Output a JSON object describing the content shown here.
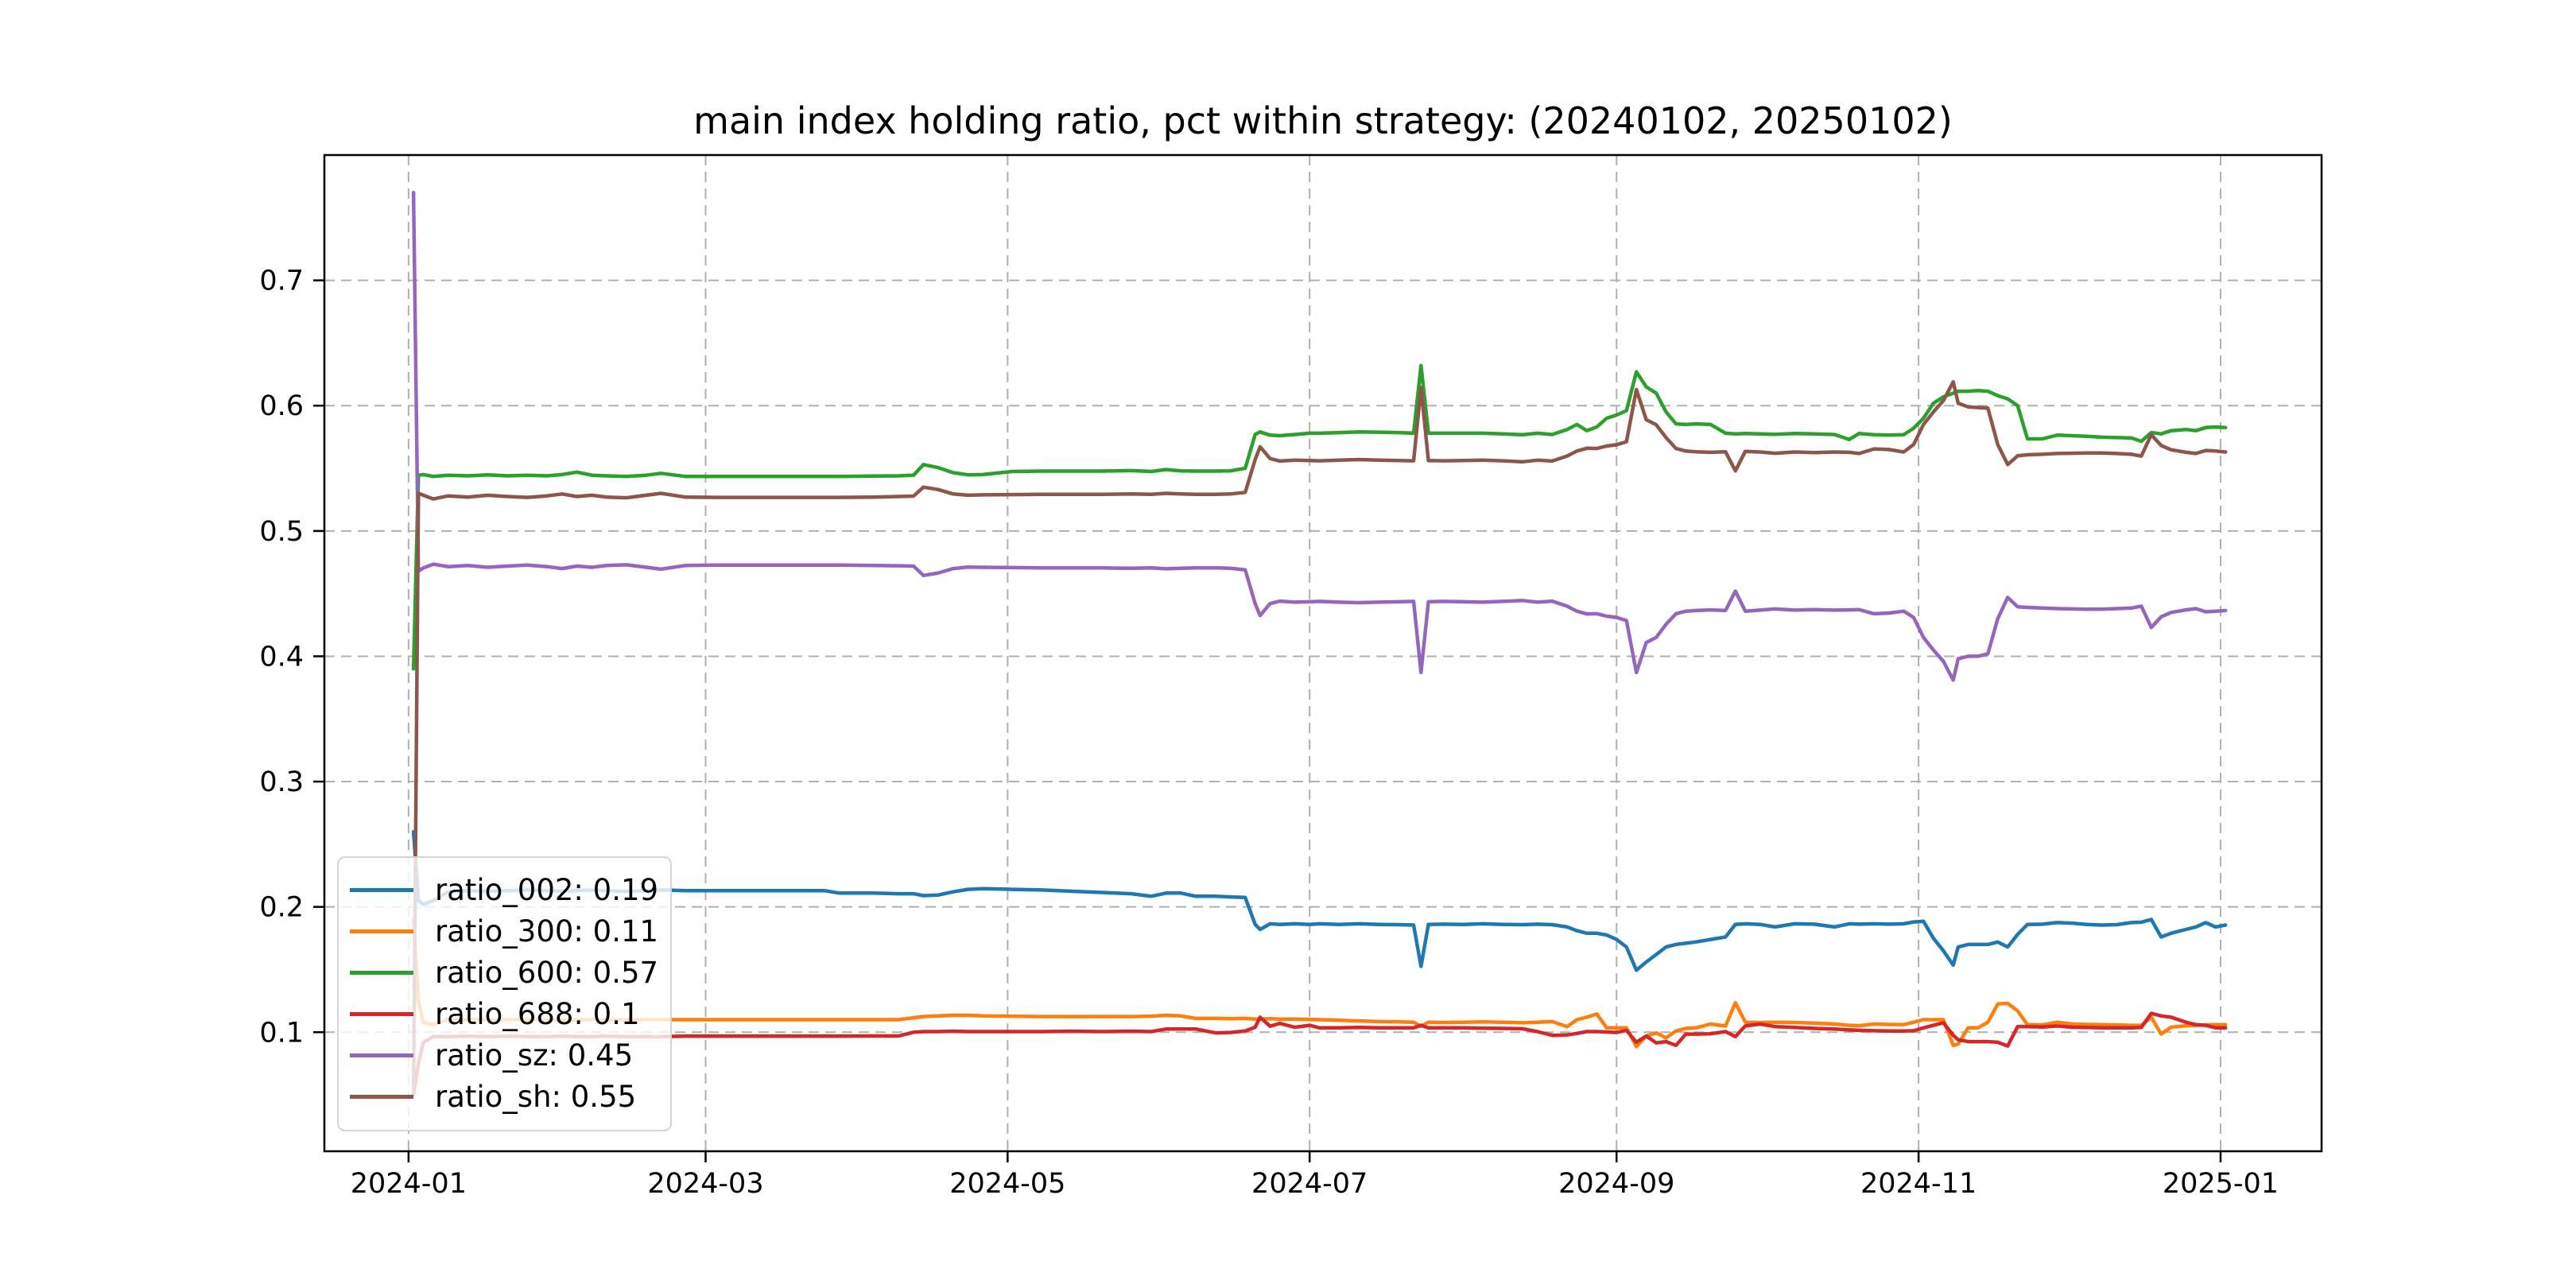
{
  "figure_title": "main index holding ratio, pct within strategy: (20240102, 20250102)",
  "chart_data": {
    "type": "line",
    "title": "main index holding ratio, pct within strategy: (20240102, 20250102)",
    "xlabel": "",
    "ylabel": "",
    "grid": true,
    "grid_style": "dashed",
    "legend_position": "lower left",
    "x_unit": "days since 2024-01-01",
    "xlim_days": [
      -17,
      386.4
    ],
    "ylim": [
      0.005,
      0.8
    ],
    "x_ticks": [
      {
        "day": 0,
        "label": "2024-01"
      },
      {
        "day": 60,
        "label": "2024-03"
      },
      {
        "day": 121,
        "label": "2024-05"
      },
      {
        "day": 182,
        "label": "2024-07"
      },
      {
        "day": 244,
        "label": "2024-09"
      },
      {
        "day": 305,
        "label": "2024-11"
      },
      {
        "day": 366,
        "label": "2025-01"
      }
    ],
    "y_ticks": [
      {
        "value": 0.1,
        "label": "0.1"
      },
      {
        "value": 0.2,
        "label": "0.2"
      },
      {
        "value": 0.3,
        "label": "0.3"
      },
      {
        "value": 0.4,
        "label": "0.4"
      },
      {
        "value": 0.5,
        "label": "0.5"
      },
      {
        "value": 0.6,
        "label": "0.6"
      },
      {
        "value": 0.7,
        "label": "0.7"
      }
    ],
    "days": [
      1,
      2,
      3,
      5,
      8,
      12,
      16,
      20,
      24,
      28,
      31,
      34,
      37,
      40,
      44,
      48,
      51,
      56,
      63,
      70,
      77,
      84,
      87,
      94,
      99,
      102,
      104,
      107,
      110,
      113,
      116,
      122,
      128,
      134,
      140,
      146,
      150,
      153,
      156,
      159,
      163,
      166,
      169,
      171,
      172,
      174,
      176,
      179,
      182,
      184,
      188,
      192,
      196,
      200,
      203,
      204.5,
      206,
      209,
      213,
      217,
      221,
      225,
      228,
      231,
      234,
      236,
      238,
      240,
      242,
      244,
      246,
      248,
      250,
      252,
      254,
      256,
      258,
      260,
      263,
      266,
      268,
      270,
      273,
      276,
      280,
      284,
      288,
      291,
      293,
      296,
      299,
      302,
      304,
      306,
      308,
      310,
      312,
      313,
      315,
      317,
      319,
      321,
      323,
      325,
      327,
      330,
      333,
      336,
      339,
      342,
      345,
      348,
      350,
      352,
      354,
      356,
      359,
      361,
      363,
      365,
      367
    ],
    "series": [
      {
        "name": "ratio_002",
        "legend_label": "ratio_002: 0.19",
        "color": "#1f77b4",
        "values": [
          0.26,
          0.205,
          0.202,
          0.205,
          0.212,
          0.213,
          0.2125,
          0.213,
          0.2135,
          0.213,
          0.2125,
          0.213,
          0.2135,
          0.213,
          0.2125,
          0.213,
          0.2135,
          0.213,
          0.213,
          0.213,
          0.213,
          0.213,
          0.211,
          0.211,
          0.2105,
          0.2105,
          0.209,
          0.2095,
          0.212,
          0.214,
          0.2145,
          0.214,
          0.2135,
          0.2125,
          0.2115,
          0.2105,
          0.2085,
          0.211,
          0.211,
          0.2085,
          0.2085,
          0.208,
          0.2075,
          0.186,
          0.182,
          0.1865,
          0.186,
          0.1865,
          0.186,
          0.1865,
          0.186,
          0.1865,
          0.186,
          0.1858,
          0.1855,
          0.1525,
          0.186,
          0.1862,
          0.186,
          0.1865,
          0.186,
          0.1858,
          0.1862,
          0.1858,
          0.184,
          0.181,
          0.179,
          0.179,
          0.1775,
          0.174,
          0.168,
          0.1495,
          0.156,
          0.162,
          0.168,
          0.17,
          0.171,
          0.172,
          0.174,
          0.176,
          0.186,
          0.1865,
          0.186,
          0.184,
          0.1865,
          0.1862,
          0.184,
          0.1865,
          0.1862,
          0.1865,
          0.1862,
          0.1865,
          0.188,
          0.1885,
          0.175,
          0.165,
          0.1535,
          0.168,
          0.17,
          0.17,
          0.17,
          0.172,
          0.168,
          0.178,
          0.186,
          0.1862,
          0.1875,
          0.187,
          0.186,
          0.1855,
          0.1858,
          0.1875,
          0.1878,
          0.19,
          0.176,
          0.179,
          0.182,
          0.184,
          0.1875,
          0.184,
          0.1855
        ]
      },
      {
        "name": "ratio_300",
        "legend_label": "ratio_300: 0.11",
        "color": "#ff7f0e",
        "values": [
          0.19,
          0.125,
          0.108,
          0.106,
          0.11,
          0.11,
          0.1098,
          0.11,
          0.1102,
          0.11,
          0.11,
          0.1098,
          0.11,
          0.11,
          0.1098,
          0.11,
          0.11,
          0.11,
          0.11,
          0.11,
          0.11,
          0.11,
          0.11,
          0.11,
          0.11,
          0.1115,
          0.1125,
          0.113,
          0.1135,
          0.1135,
          0.113,
          0.1128,
          0.1125,
          0.1125,
          0.1125,
          0.1125,
          0.1128,
          0.1135,
          0.113,
          0.111,
          0.111,
          0.1108,
          0.111,
          0.1105,
          0.1105,
          0.1108,
          0.1105,
          0.1105,
          0.1102,
          0.11,
          0.1095,
          0.109,
          0.1085,
          0.1082,
          0.108,
          0.1048,
          0.108,
          0.1078,
          0.108,
          0.1082,
          0.108,
          0.1075,
          0.108,
          0.1085,
          0.1045,
          0.11,
          0.112,
          0.1145,
          0.1035,
          0.1035,
          0.1035,
          0.0885,
          0.097,
          0.0995,
          0.0955,
          0.101,
          0.103,
          0.1035,
          0.1065,
          0.105,
          0.1235,
          0.108,
          0.1078,
          0.108,
          0.1078,
          0.1072,
          0.1065,
          0.1055,
          0.1052,
          0.1065,
          0.1062,
          0.106,
          0.108,
          0.11,
          0.11,
          0.11,
          0.0895,
          0.0905,
          0.1035,
          0.1035,
          0.108,
          0.1225,
          0.123,
          0.117,
          0.106,
          0.1058,
          0.108,
          0.1065,
          0.1062,
          0.106,
          0.1058,
          0.1055,
          0.1055,
          0.112,
          0.0985,
          0.104,
          0.1052,
          0.1055,
          0.1058,
          0.106,
          0.106
        ]
      },
      {
        "name": "ratio_600",
        "legend_label": "ratio_600: 0.57",
        "color": "#2ca02c",
        "values": [
          0.39,
          0.5445,
          0.545,
          0.5435,
          0.5445,
          0.544,
          0.5448,
          0.544,
          0.5445,
          0.544,
          0.545,
          0.547,
          0.5445,
          0.544,
          0.5435,
          0.5445,
          0.546,
          0.5435,
          0.5435,
          0.5435,
          0.5435,
          0.5435,
          0.5435,
          0.5438,
          0.544,
          0.5445,
          0.553,
          0.5505,
          0.5465,
          0.5448,
          0.545,
          0.5475,
          0.5478,
          0.5478,
          0.5478,
          0.5482,
          0.5475,
          0.549,
          0.548,
          0.5478,
          0.5478,
          0.548,
          0.55,
          0.577,
          0.579,
          0.5765,
          0.576,
          0.577,
          0.578,
          0.578,
          0.5785,
          0.579,
          0.5788,
          0.5785,
          0.578,
          0.632,
          0.578,
          0.578,
          0.578,
          0.578,
          0.5775,
          0.5768,
          0.578,
          0.577,
          0.581,
          0.585,
          0.58,
          0.583,
          0.59,
          0.5925,
          0.596,
          0.627,
          0.615,
          0.61,
          0.595,
          0.5855,
          0.585,
          0.5855,
          0.585,
          0.578,
          0.5775,
          0.5778,
          0.5775,
          0.5772,
          0.5778,
          0.5775,
          0.577,
          0.573,
          0.5778,
          0.5768,
          0.5765,
          0.5768,
          0.582,
          0.59,
          0.602,
          0.607,
          0.61,
          0.6115,
          0.6115,
          0.612,
          0.6115,
          0.608,
          0.6055,
          0.6,
          0.5735,
          0.5735,
          0.5765,
          0.576,
          0.5755,
          0.5748,
          0.5745,
          0.5742,
          0.5715,
          0.5785,
          0.5775,
          0.58,
          0.581,
          0.58,
          0.5825,
          0.583,
          0.5825
        ]
      },
      {
        "name": "ratio_688",
        "legend_label": "ratio_688: 0.1",
        "color": "#d62728",
        "values": [
          0.05,
          0.075,
          0.092,
          0.0965,
          0.0965,
          0.0968,
          0.0965,
          0.0968,
          0.0965,
          0.0965,
          0.0968,
          0.0965,
          0.0965,
          0.0968,
          0.0965,
          0.0965,
          0.0965,
          0.0968,
          0.0968,
          0.0968,
          0.0968,
          0.0968,
          0.0968,
          0.097,
          0.097,
          0.1,
          0.1005,
          0.1005,
          0.1008,
          0.1005,
          0.1005,
          0.1005,
          0.1005,
          0.1008,
          0.1005,
          0.1008,
          0.1005,
          0.1025,
          0.1025,
          0.1025,
          0.0995,
          0.0998,
          0.101,
          0.104,
          0.112,
          0.1048,
          0.107,
          0.104,
          0.1055,
          0.1035,
          0.1035,
          0.1038,
          0.1035,
          0.1035,
          0.1035,
          0.1055,
          0.1035,
          0.1035,
          0.1035,
          0.1032,
          0.103,
          0.1028,
          0.1005,
          0.0975,
          0.0978,
          0.099,
          0.1005,
          0.1005,
          0.1002,
          0.0998,
          0.1015,
          0.092,
          0.097,
          0.0915,
          0.0925,
          0.0895,
          0.0985,
          0.0985,
          0.0988,
          0.1005,
          0.0965,
          0.105,
          0.1065,
          0.1045,
          0.1038,
          0.103,
          0.1025,
          0.1018,
          0.1015,
          0.1012,
          0.101,
          0.101,
          0.1012,
          0.1035,
          0.1055,
          0.1075,
          0.0975,
          0.094,
          0.0925,
          0.0925,
          0.0925,
          0.092,
          0.089,
          0.1045,
          0.1045,
          0.1042,
          0.105,
          0.104,
          0.1038,
          0.1035,
          0.1035,
          0.1035,
          0.1038,
          0.115,
          0.113,
          0.112,
          0.108,
          0.106,
          0.1055,
          0.1035,
          0.1035
        ]
      },
      {
        "name": "ratio_sz",
        "legend_label": "ratio_sz: 0.45",
        "color": "#9467bd",
        "values": [
          0.77,
          0.468,
          0.4705,
          0.4735,
          0.4715,
          0.4725,
          0.471,
          0.472,
          0.4728,
          0.4715,
          0.47,
          0.472,
          0.471,
          0.4725,
          0.473,
          0.471,
          0.4695,
          0.4725,
          0.4728,
          0.4728,
          0.4728,
          0.4728,
          0.4728,
          0.4725,
          0.4722,
          0.472,
          0.4645,
          0.4665,
          0.47,
          0.4712,
          0.471,
          0.4708,
          0.4705,
          0.4705,
          0.4705,
          0.4702,
          0.4705,
          0.4698,
          0.4702,
          0.4705,
          0.4705,
          0.4702,
          0.469,
          0.442,
          0.4325,
          0.442,
          0.444,
          0.4432,
          0.4435,
          0.4438,
          0.4432,
          0.4428,
          0.4432,
          0.4435,
          0.4438,
          0.387,
          0.4435,
          0.4438,
          0.4435,
          0.4432,
          0.4438,
          0.4445,
          0.4432,
          0.444,
          0.44,
          0.436,
          0.4338,
          0.434,
          0.432,
          0.431,
          0.4285,
          0.387,
          0.411,
          0.415,
          0.4255,
          0.434,
          0.436,
          0.4365,
          0.437,
          0.4365,
          0.452,
          0.436,
          0.4368,
          0.4378,
          0.4368,
          0.4372,
          0.4368,
          0.437,
          0.4372,
          0.434,
          0.4345,
          0.436,
          0.431,
          0.415,
          0.405,
          0.396,
          0.381,
          0.398,
          0.4,
          0.4,
          0.402,
          0.43,
          0.447,
          0.4395,
          0.439,
          0.4385,
          0.438,
          0.4378,
          0.4375,
          0.4375,
          0.438,
          0.4385,
          0.44,
          0.423,
          0.4315,
          0.435,
          0.437,
          0.438,
          0.4355,
          0.436,
          0.4365
        ]
      },
      {
        "name": "ratio_sh",
        "legend_label": "ratio_sh: 0.55",
        "color": "#8c564b",
        "values": [
          0.05,
          0.53,
          0.5285,
          0.5255,
          0.528,
          0.527,
          0.5285,
          0.5275,
          0.5268,
          0.528,
          0.5295,
          0.5275,
          0.5285,
          0.527,
          0.5265,
          0.5285,
          0.53,
          0.527,
          0.5268,
          0.5268,
          0.5268,
          0.5268,
          0.5268,
          0.527,
          0.5275,
          0.5278,
          0.535,
          0.533,
          0.5295,
          0.5285,
          0.5288,
          0.529,
          0.5293,
          0.5293,
          0.5293,
          0.5295,
          0.5293,
          0.53,
          0.5295,
          0.5293,
          0.5293,
          0.5295,
          0.5308,
          0.557,
          0.5672,
          0.5578,
          0.5558,
          0.5565,
          0.5562,
          0.556,
          0.5565,
          0.557,
          0.5565,
          0.5562,
          0.556,
          0.6145,
          0.5562,
          0.556,
          0.5562,
          0.5565,
          0.556,
          0.5552,
          0.5565,
          0.5558,
          0.5598,
          0.5638,
          0.566,
          0.5658,
          0.5678,
          0.5688,
          0.5712,
          0.6128,
          0.5888,
          0.5848,
          0.5745,
          0.5658,
          0.5638,
          0.5632,
          0.5628,
          0.5632,
          0.548,
          0.5635,
          0.563,
          0.562,
          0.563,
          0.5625,
          0.563,
          0.5628,
          0.5618,
          0.5655,
          0.565,
          0.563,
          0.569,
          0.585,
          0.595,
          0.604,
          0.619,
          0.602,
          0.599,
          0.5985,
          0.598,
          0.569,
          0.553,
          0.56,
          0.5608,
          0.5612,
          0.5618,
          0.562,
          0.5622,
          0.5622,
          0.5618,
          0.5612,
          0.5598,
          0.5768,
          0.5682,
          0.5648,
          0.5628,
          0.5618,
          0.5642,
          0.5638,
          0.563
        ]
      }
    ],
    "colors": {
      "grid": "#b0b0b0",
      "spine": "#000000",
      "tick_label": "#000000",
      "title": "#000000",
      "legend_border": "#d4d4d4",
      "legend_background": "rgba(255,255,255,0.8)"
    }
  }
}
